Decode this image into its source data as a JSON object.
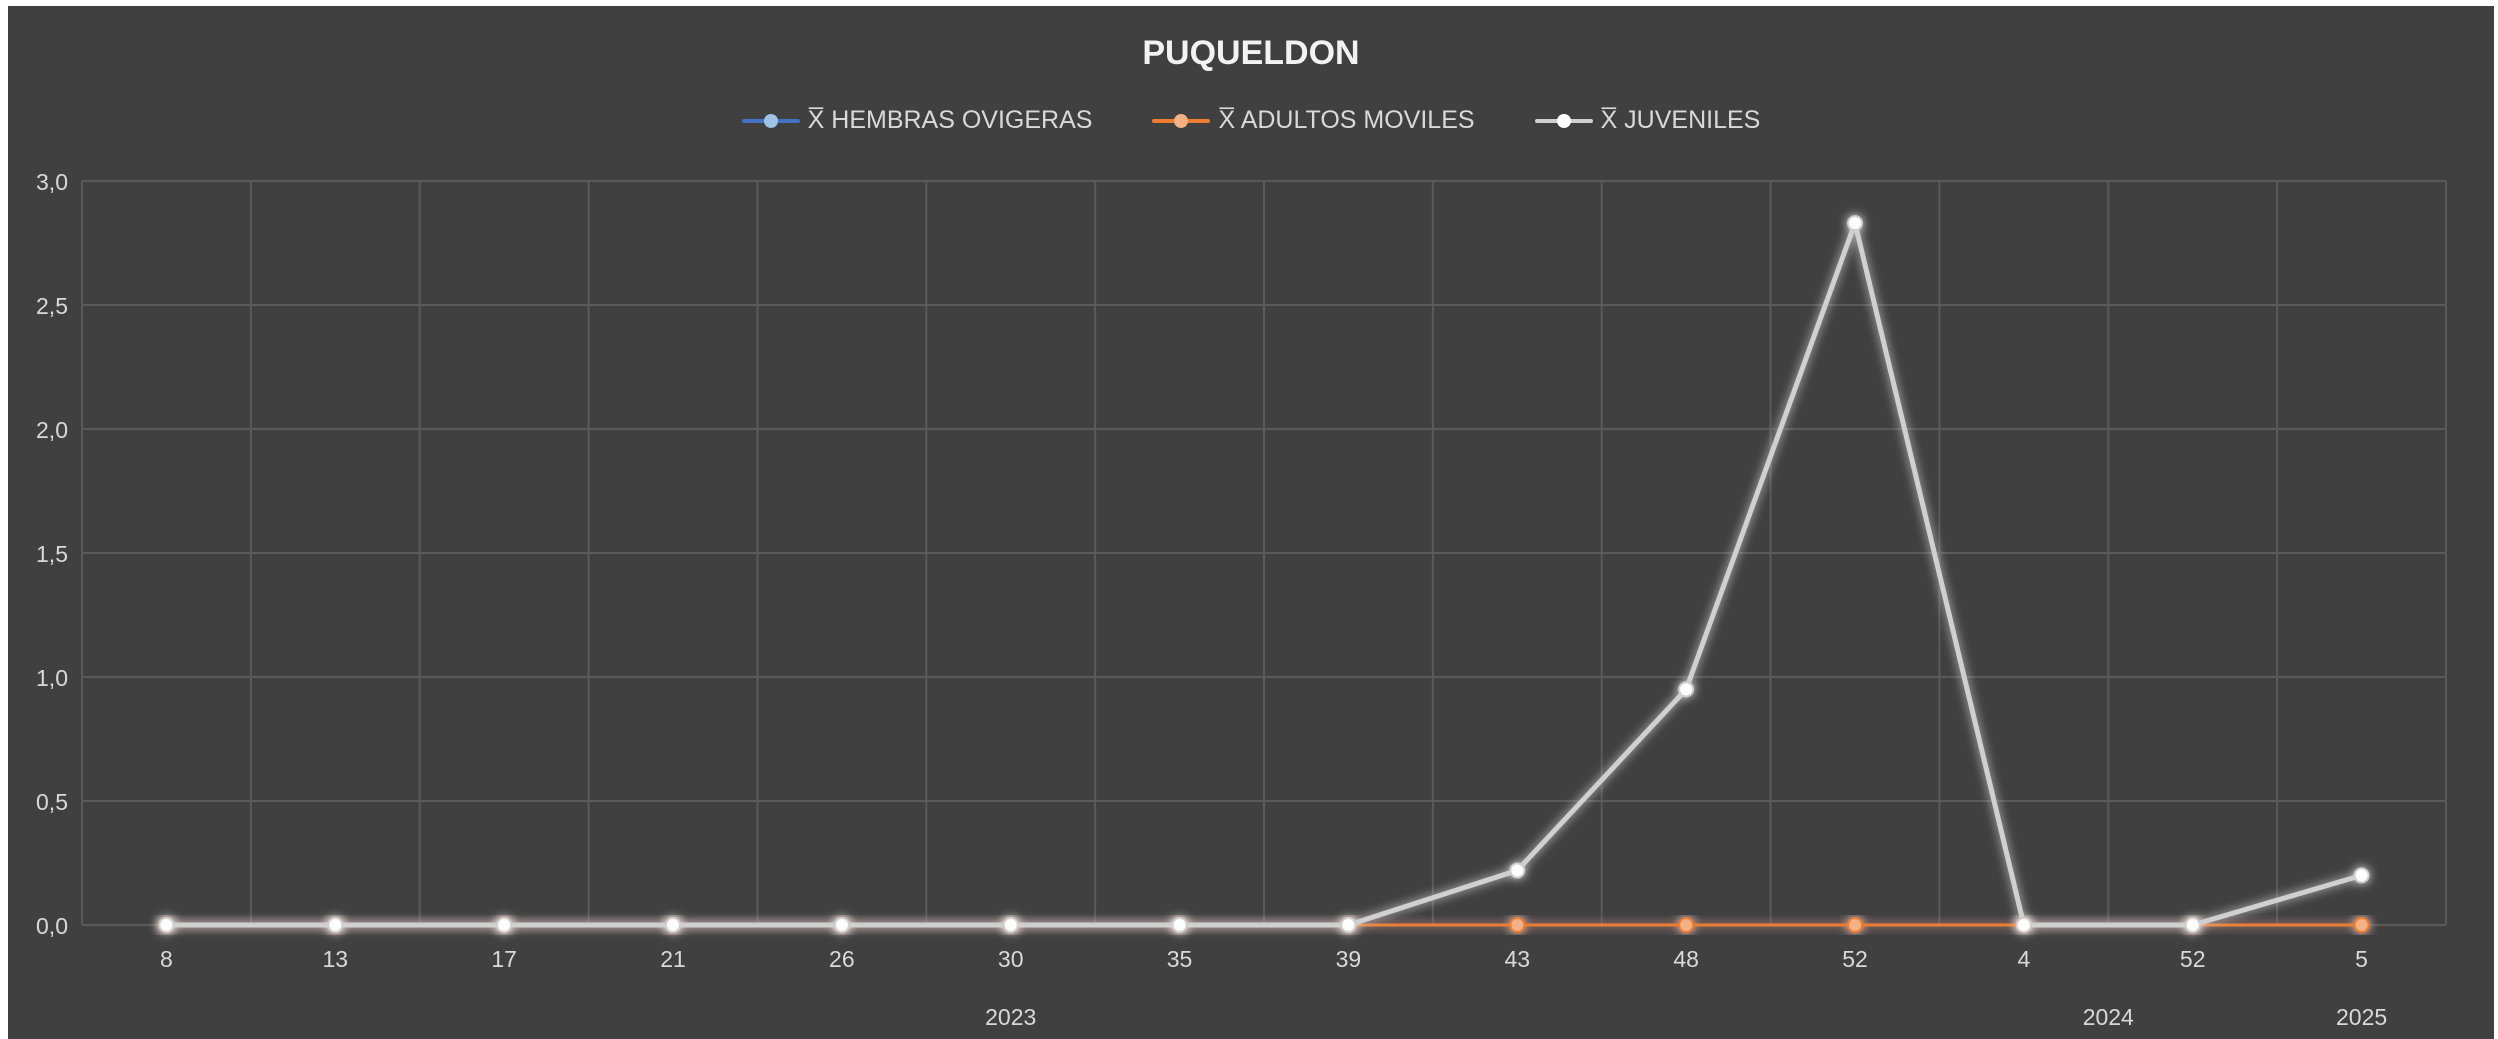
{
  "chart_data": {
    "type": "line",
    "title": "PUQUELDON",
    "categories": [
      "8",
      "13",
      "17",
      "21",
      "26",
      "30",
      "35",
      "39",
      "43",
      "48",
      "52",
      "4",
      "52",
      "5"
    ],
    "year_labels": [
      {
        "label": "2023",
        "span": [
          0,
          10
        ]
      },
      {
        "label": "2024",
        "span": [
          11,
          12
        ]
      },
      {
        "label": "2025",
        "span": [
          13,
          13
        ]
      }
    ],
    "series": [
      {
        "name": "X̅ HEMBRAS OVIGERAS",
        "color": "#4472c4",
        "values": [
          0,
          0,
          0,
          0,
          0,
          0,
          0,
          0,
          0,
          0,
          0,
          0,
          0,
          0
        ]
      },
      {
        "name": "X̅ ADULTOS MOVILES",
        "color": "#ed7d31",
        "values": [
          0,
          0,
          0,
          0,
          0,
          0,
          0,
          0,
          0,
          0,
          0,
          0,
          0,
          0
        ]
      },
      {
        "name": "X̅ JUVENILES",
        "color": "#d0d0d0",
        "values": [
          0,
          0,
          0,
          0,
          0,
          0,
          0,
          0,
          0.22,
          0.95,
          2.83,
          0,
          0,
          0.2
        ]
      }
    ],
    "ylim": [
      0,
      3
    ],
    "yticks": [
      "0,0",
      "0,5",
      "1,0",
      "1,5",
      "2,0",
      "2,5",
      "3,0"
    ],
    "xlabel": "",
    "ylabel": "",
    "grid": true,
    "legend_position": "top"
  },
  "colors": {
    "background": "#404040",
    "grid": "#5a5a5a",
    "text": "#d9d9d9"
  }
}
